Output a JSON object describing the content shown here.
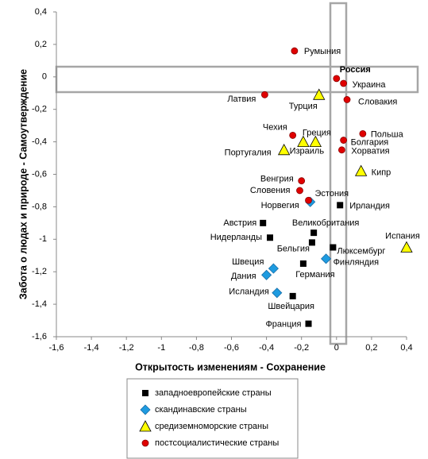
{
  "chart_data": {
    "type": "scatter",
    "xlabel": "Открытость изменениям - Сохранение",
    "ylabel": "Забота о людах и природе - Самоутверждение",
    "xlim": [
      -1.6,
      0.4
    ],
    "ylim": [
      -1.6,
      0.4
    ],
    "xticks": [
      {
        "value": -1.6,
        "label": "-1,6"
      },
      {
        "value": -1.4,
        "label": "-1,4"
      },
      {
        "value": -1.2,
        "label": "-1,2"
      },
      -1,
      {
        "value": -0.8,
        "label": "-0,8"
      },
      {
        "value": -0.6,
        "label": "-0,6"
      },
      {
        "value": -0.4,
        "label": "-0,4"
      },
      {
        "value": -0.2,
        "label": "-0,2"
      },
      0,
      {
        "value": 0.2,
        "label": "0,2"
      },
      {
        "value": 0.4,
        "label": "0,4"
      }
    ],
    "yticks": [
      {
        "value": -1.6,
        "label": "-1,6"
      },
      {
        "value": -1.4,
        "label": "-1,4"
      },
      {
        "value": -1.2,
        "label": "-1,2"
      },
      -1,
      {
        "value": -0.8,
        "label": "-0,8"
      },
      {
        "value": -0.6,
        "label": "-0,6"
      },
      {
        "value": -0.4,
        "label": "-0,4"
      },
      {
        "value": -0.2,
        "label": "-0,2"
      },
      0,
      {
        "value": 0.2,
        "label": "0,2"
      },
      {
        "value": 0.4,
        "label": "0,4"
      }
    ],
    "legend": "bottom",
    "series": [
      {
        "name": "западноевропейские страны",
        "color": "#000000",
        "marker": "square",
        "x": [
          -0.02,
          0.02,
          -0.13,
          -0.14,
          -0.42,
          -0.38,
          -0.19,
          -0.25,
          -0.16
        ],
        "values": [
          -1.05,
          -0.79,
          -0.96,
          -1.02,
          -0.9,
          -0.99,
          -1.15,
          -1.35,
          -1.52
        ],
        "labels": [
          "Люксембург",
          "Ирландия",
          "Великобритания",
          "Бельгия",
          "Австрия",
          "Нидерланды",
          "Германия",
          "Швейцария",
          "Франция"
        ]
      },
      {
        "name": "скандинавские страны",
        "color": "#1e9be0",
        "marker": "diamond",
        "x": [
          -0.15,
          -0.06,
          -0.36,
          -0.4,
          -0.34
        ],
        "values": [
          -0.77,
          -1.12,
          -1.18,
          -1.22,
          -1.33
        ],
        "labels": [
          "Норвегия",
          "Финляндия",
          "Швеция",
          "Дания",
          "Исландия"
        ]
      },
      {
        "name": "средиземноморские страны",
        "color": "#ffff00",
        "marker": "triangle",
        "x": [
          -0.1,
          -0.19,
          -0.12,
          -0.3,
          0.14,
          0.4
        ],
        "values": [
          -0.11,
          -0.4,
          -0.4,
          -0.45,
          -0.58,
          -1.05
        ],
        "labels": [
          "Турция",
          "Греция",
          "Израиль",
          "Португалия",
          "Кипр",
          "Испания"
        ]
      },
      {
        "name": "постсоциалистические страны",
        "color": "#e00000",
        "marker": "circle",
        "x": [
          -0.24,
          0.0,
          0.04,
          -0.41,
          0.06,
          -0.25,
          0.15,
          0.04,
          0.03,
          -0.2,
          -0.21,
          -0.16
        ],
        "values": [
          0.16,
          -0.01,
          -0.04,
          -0.11,
          -0.14,
          -0.36,
          -0.35,
          -0.39,
          -0.45,
          -0.64,
          -0.7,
          -0.76
        ],
        "labels": [
          "Румыния",
          "Россия",
          "Украина",
          "Латвия",
          "Словакия",
          "Чехия",
          "Польша",
          "Болгария",
          "Хорватия",
          "Венгрия",
          "Словения",
          "Эстония"
        ]
      }
    ]
  }
}
